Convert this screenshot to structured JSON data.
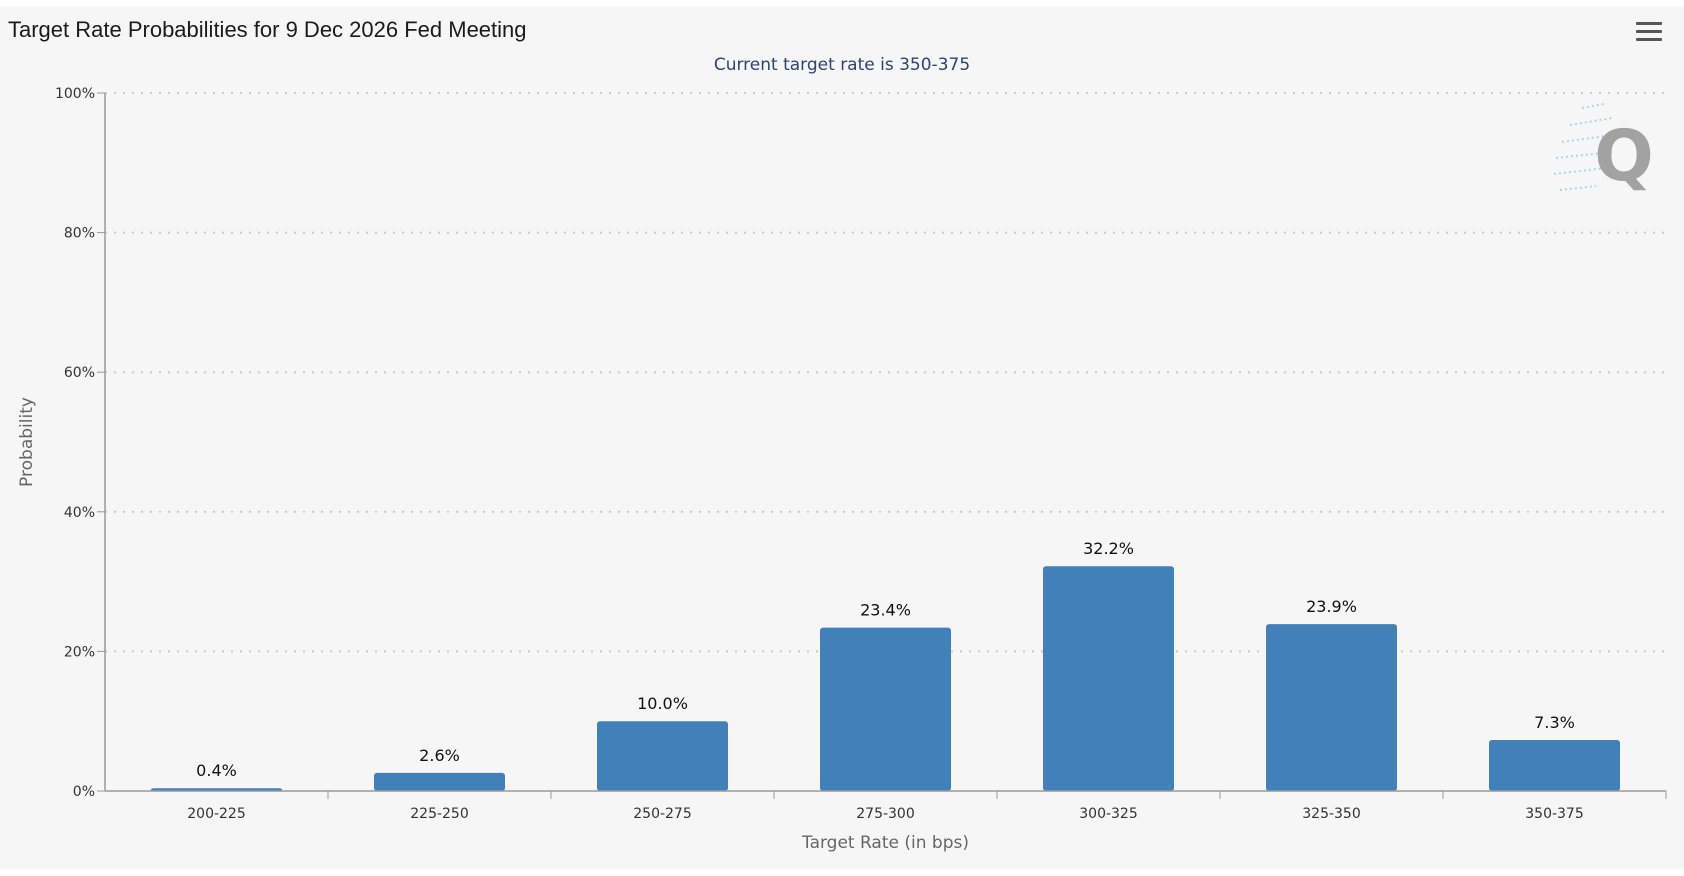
{
  "title": "Target Rate Probabilities for 9 Dec 2026 Fed Meeting",
  "subtitle": "Current target rate is 350-375",
  "menu_icon": "hamburger-menu-icon",
  "watermark_icon": "q-logo-icon",
  "colors": {
    "bar": "#4180b8",
    "grid": "#c9c9c9",
    "axis": "#999999",
    "background": "#f6f6f6"
  },
  "chart_data": {
    "type": "bar",
    "title": "Target Rate Probabilities for 9 Dec 2026 Fed Meeting",
    "subtitle": "Current target rate is 350-375",
    "xlabel": "Target Rate (in bps)",
    "ylabel": "Probability",
    "categories": [
      "200-225",
      "225-250",
      "250-275",
      "275-300",
      "300-325",
      "325-350",
      "350-375"
    ],
    "values": [
      0.4,
      2.6,
      10.0,
      23.4,
      32.2,
      23.9,
      7.3
    ],
    "data_labels": [
      "0.4%",
      "2.6%",
      "10.0%",
      "23.4%",
      "32.2%",
      "23.9%",
      "7.3%"
    ],
    "ylim": [
      0,
      100
    ],
    "yticks": [
      0,
      20,
      40,
      60,
      80,
      100
    ],
    "ytick_labels": [
      "0%",
      "20%",
      "40%",
      "60%",
      "80%",
      "100%"
    ],
    "grid": true,
    "legend": "none"
  }
}
